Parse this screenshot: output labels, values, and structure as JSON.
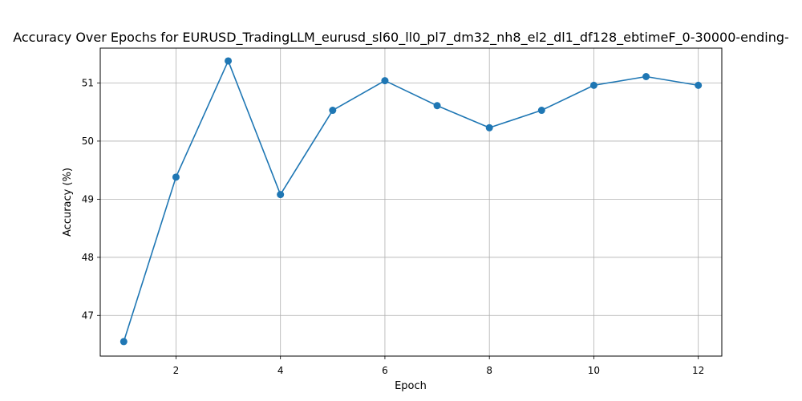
{
  "chart_data": {
    "type": "line",
    "title": "Accuracy Over Epochs for EURUSD_TradingLLM_eurusd_sl60_ll0_pl7_dm32_nh8_el2_dl1_df128_ebtimeF_0-30000-ending-",
    "xlabel": "Epoch",
    "ylabel": "Accuracy (%)",
    "xlim": [
      0.55,
      12.45
    ],
    "ylim": [
      46.3,
      51.6
    ],
    "x_ticks": [
      2,
      4,
      6,
      8,
      10,
      12
    ],
    "y_ticks": [
      47,
      48,
      49,
      50,
      51
    ],
    "grid": true,
    "series": [
      {
        "x": [
          1,
          2,
          3,
          4,
          5,
          6,
          7,
          8,
          9,
          10,
          11,
          12
        ],
        "values": [
          46.55,
          49.38,
          51.38,
          49.08,
          50.53,
          51.04,
          50.61,
          50.23,
          50.53,
          50.96,
          51.11,
          50.96
        ],
        "color": "#1f77b4",
        "marker": "circle"
      }
    ]
  }
}
